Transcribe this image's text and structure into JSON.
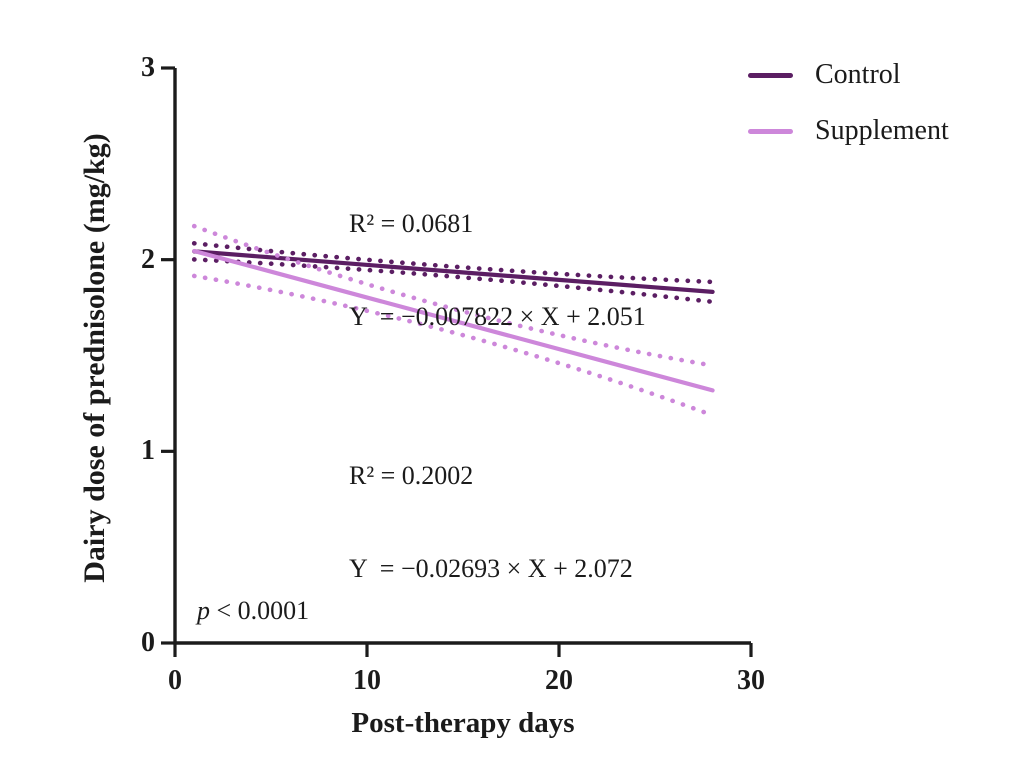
{
  "figure": {
    "background_color": "#ffffff",
    "axis_color": "#1b1b1b",
    "text_color": "#1b1b1b"
  },
  "chart_data": {
    "type": "line",
    "title": "",
    "xlabel": "Post-therapy days",
    "ylabel": "Dairy dose of prednisolone (mg/kg)",
    "xlim": [
      0,
      30
    ],
    "ylim": [
      0,
      3
    ],
    "xticks": [
      0,
      10,
      20,
      30
    ],
    "yticks": [
      0,
      1,
      2,
      3
    ],
    "xtick_labels": [
      "0",
      "10",
      "20",
      "30"
    ],
    "ytick_labels": [
      "0",
      "1",
      "2",
      "3"
    ],
    "grid": false,
    "legend_position": "top-right",
    "p_value": {
      "symbol": "p",
      "comparison": " < 0.0001"
    },
    "series": [
      {
        "name": "Control",
        "color": "#5b1e63",
        "line_style": "solid",
        "slope": -0.007822,
        "intercept": 2.051,
        "r_squared": 0.0681,
        "x_start": 1,
        "x_end": 28,
        "y_start": 2.043,
        "y_end": 1.832,
        "ci_band": {
          "style": "dotted",
          "halfwidth_start": 0.042,
          "halfwidth_mid": 0.026,
          "halfwidth_end": 0.052
        },
        "annotation": {
          "r2_label": "R² = 0.0681",
          "equation_label": "Y  = −0.007822 × X + 2.051"
        }
      },
      {
        "name": "Supplement",
        "color": "#cd87da",
        "line_style": "solid",
        "slope": -0.02693,
        "intercept": 2.072,
        "r_squared": 0.2002,
        "x_start": 1,
        "x_end": 28,
        "y_start": 2.045,
        "y_end": 1.318,
        "ci_band": {
          "style": "dotted",
          "halfwidth_start": 0.13,
          "halfwidth_mid": 0.062,
          "halfwidth_end": 0.13
        },
        "annotation": {
          "r2_label": "R² = 0.2002",
          "equation_label": "Y  = −0.02693 × X + 2.072"
        }
      }
    ]
  }
}
